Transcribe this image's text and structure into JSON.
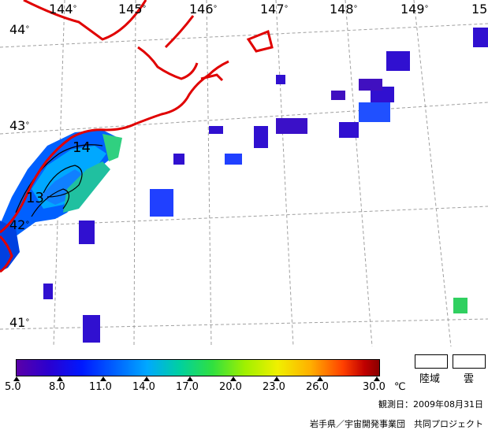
{
  "map": {
    "lon_labels": [
      "144",
      "145",
      "146",
      "147",
      "148",
      "149",
      "15"
    ],
    "lat_labels": [
      "44",
      "43",
      "42",
      "41"
    ],
    "degree_symbol": "°",
    "contour_labels": [
      "14",
      "13"
    ],
    "colors": {
      "coast": "#e00000",
      "grid": "#a0a0a0",
      "contour": "#000000"
    }
  },
  "colorbar": {
    "ticks": [
      "5.0",
      "8.0",
      "11.0",
      "14.0",
      "17.0",
      "20.0",
      "23.0",
      "26.0",
      "30.0"
    ],
    "unit": "℃"
  },
  "legend": {
    "land_label": "陸域",
    "cloud_label": "雲"
  },
  "footer": {
    "observation_date": "観測日：2009年08月31日",
    "credit": "岩手県／宇宙開発事業団　共同プロジェクト"
  }
}
